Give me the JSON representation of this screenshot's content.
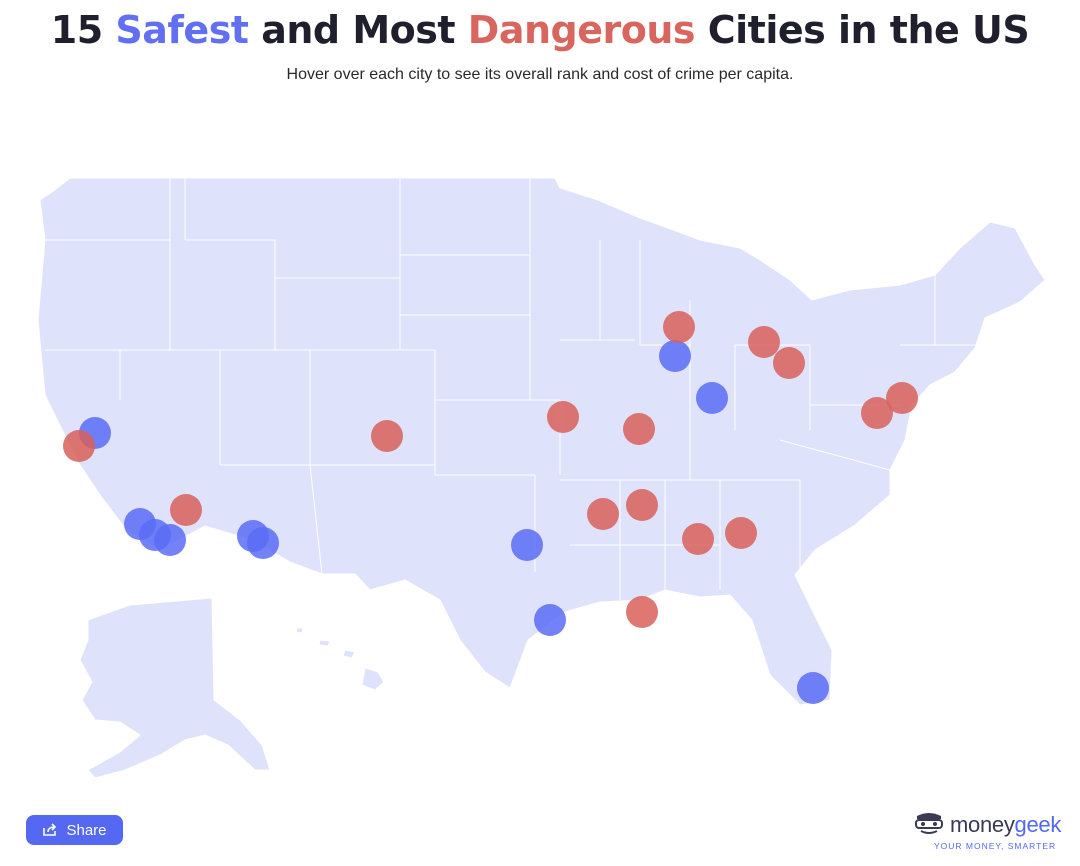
{
  "title": {
    "prefix": "15 ",
    "safe": "Safest",
    "middle": " and Most ",
    "danger": "Dangerous",
    "suffix": " Cities in the US"
  },
  "subtitle": "Hover over each city to see its overall rank and cost of crime per capita.",
  "colors": {
    "safe": "#5b6cf5",
    "danger": "#d9605a",
    "land": "#dfe2fb",
    "border": "#ffffff"
  },
  "share": {
    "label": "Share",
    "icon": "share-icon"
  },
  "brand": {
    "name_main": "money",
    "name_accent": "geek",
    "tagline": "YOUR MONEY, SMARTER",
    "icon": "moneygeek-mask-icon"
  }
}
